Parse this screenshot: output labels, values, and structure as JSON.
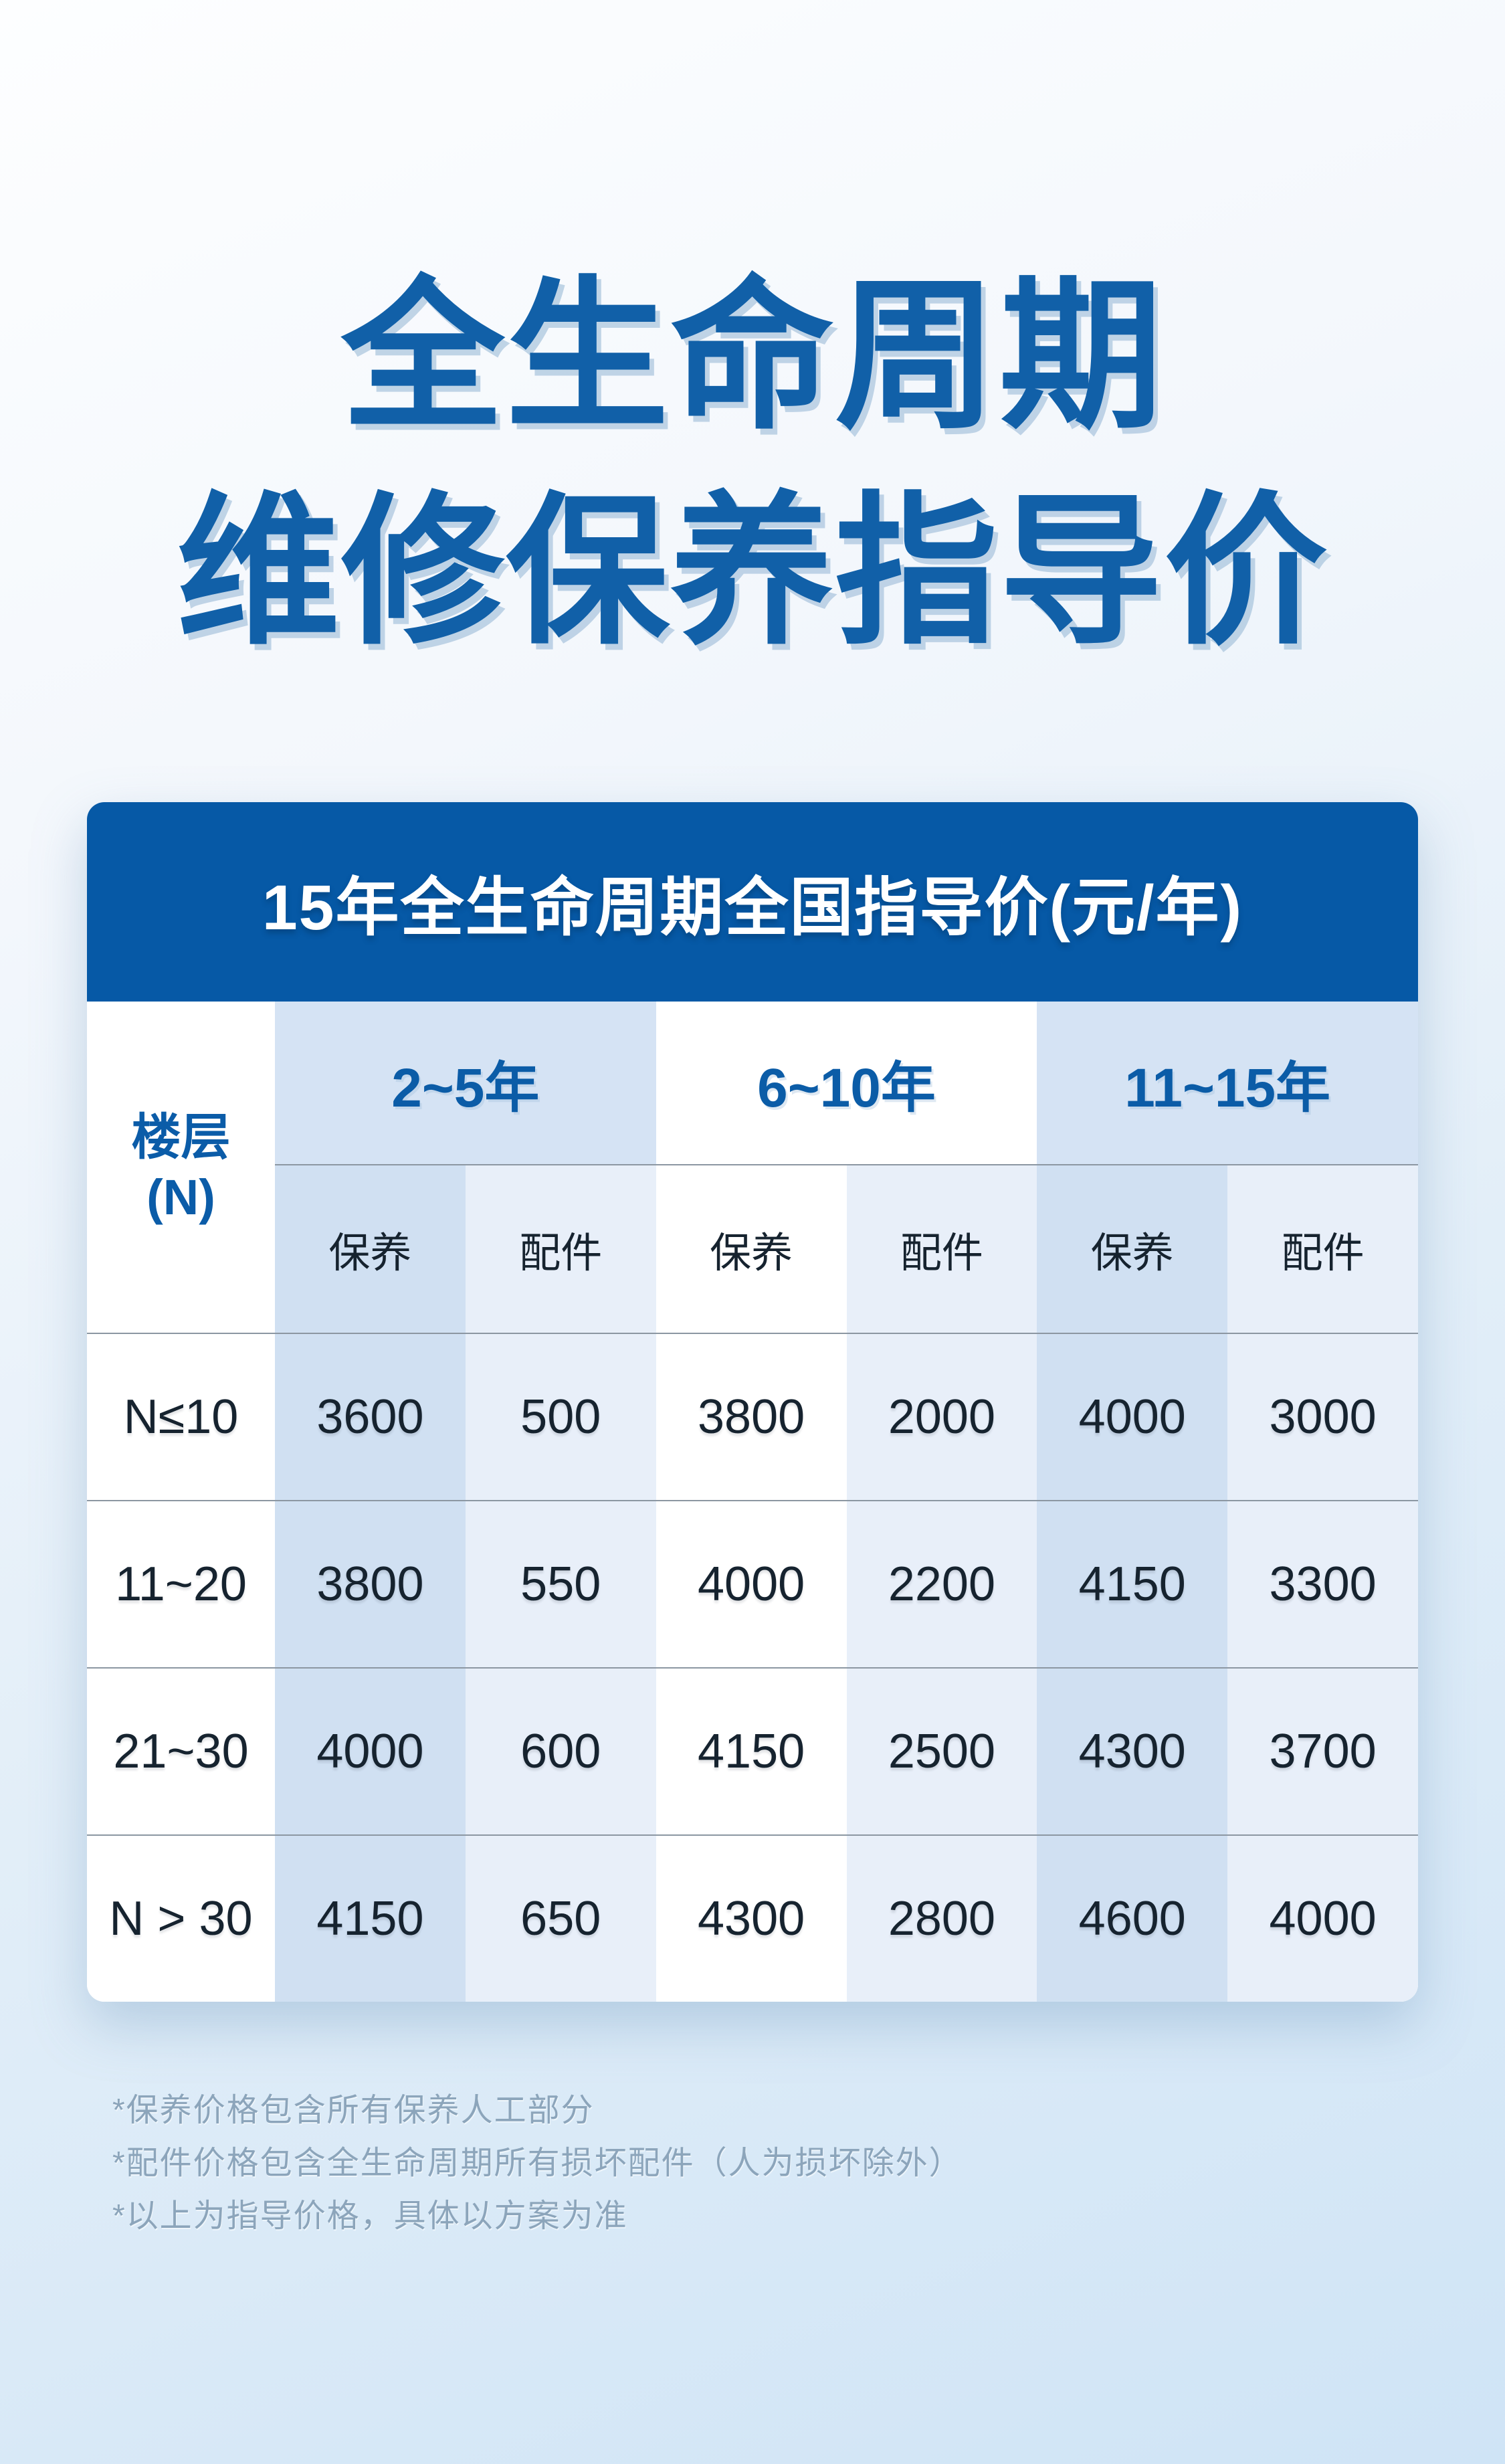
{
  "title": {
    "line1": "全生命周期",
    "line2": "维修保养指导价"
  },
  "card": {
    "header": "15年全生命周期全国指导价(元/年)"
  },
  "table": {
    "floor": {
      "line1": "楼层",
      "line2": "(N)"
    },
    "groups": [
      "2~5年",
      "6~10年",
      "11~15年"
    ],
    "sub_headers": [
      "保养",
      "配件",
      "保养",
      "配件",
      "保养",
      "配件"
    ],
    "rows": [
      {
        "floor": "N≤10",
        "values": [
          "3600",
          "500",
          "3800",
          "2000",
          "4000",
          "3000"
        ]
      },
      {
        "floor": "11~20",
        "values": [
          "3800",
          "550",
          "4000",
          "2200",
          "4150",
          "3300"
        ]
      },
      {
        "floor": "21~30",
        "values": [
          "4000",
          "600",
          "4150",
          "2500",
          "4300",
          "3700"
        ]
      },
      {
        "floor": "N > 30",
        "values": [
          "4150",
          "650",
          "4300",
          "2800",
          "4600",
          "4000"
        ]
      }
    ]
  },
  "notes": [
    "*保养价格包含所有保养人工部分",
    "*配件价格包含全生命周期所有损坏配件（人为损坏除外）",
    "*以上为指导价格，具体以方案为准"
  ],
  "colors": {
    "title_blue": "#1160A8",
    "header_bg": "#0659A6",
    "group_header_bg": "#D5E3F4",
    "column_strong": "#D0E0F2",
    "column_light": "#E8EFF9",
    "text_dark": "#16232F",
    "note_text": "#8CA5BB",
    "divider": "#8C97A2"
  }
}
